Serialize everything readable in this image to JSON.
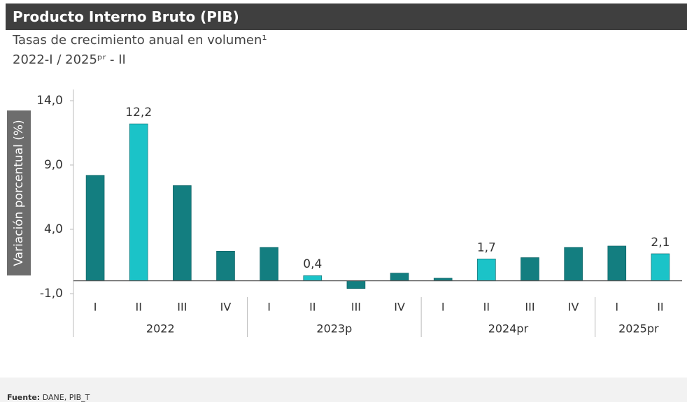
{
  "chart_data": {
    "type": "bar",
    "title": "Producto Interno Bruto (PIB)",
    "subtitle": "Tasas de crecimiento anual en volumen¹",
    "period": "2022-I / 2025ᵖʳ - II",
    "y_label": "Variación porcentual (%)",
    "categories": [
      "I",
      "II",
      "III",
      "IV",
      "I",
      "II",
      "III",
      "IV",
      "I",
      "II",
      "III",
      "IV",
      "I",
      "II"
    ],
    "groups": [
      "2022",
      "2023p",
      "2024pr",
      "2025pr"
    ],
    "group_sizes": [
      4,
      4,
      4,
      2
    ],
    "values": [
      8.2,
      12.2,
      7.4,
      2.3,
      2.6,
      0.4,
      -0.6,
      0.6,
      0.2,
      1.7,
      1.8,
      2.6,
      2.7,
      2.1
    ],
    "value_labels": [
      null,
      "12,2",
      null,
      null,
      null,
      "0,4",
      null,
      null,
      null,
      "1,7",
      null,
      null,
      null,
      "2,1"
    ],
    "colors": [
      "#137e80",
      "#1bc3c8",
      "#137e80",
      "#137e80",
      "#137e80",
      "#1bc3c8",
      "#137e80",
      "#137e80",
      "#137e80",
      "#1bc3c8",
      "#137e80",
      "#137e80",
      "#137e80",
      "#1bc3c8"
    ],
    "ylim": [
      -1,
      14
    ],
    "yticks": [
      {
        "value": -1,
        "label": "-1,0"
      },
      {
        "value": 4,
        "label": "4,0"
      },
      {
        "value": 9,
        "label": "9,0"
      },
      {
        "value": 14,
        "label": "14,0"
      }
    ],
    "source_label": "Fuente:",
    "source": "DANE, PIB_T"
  }
}
